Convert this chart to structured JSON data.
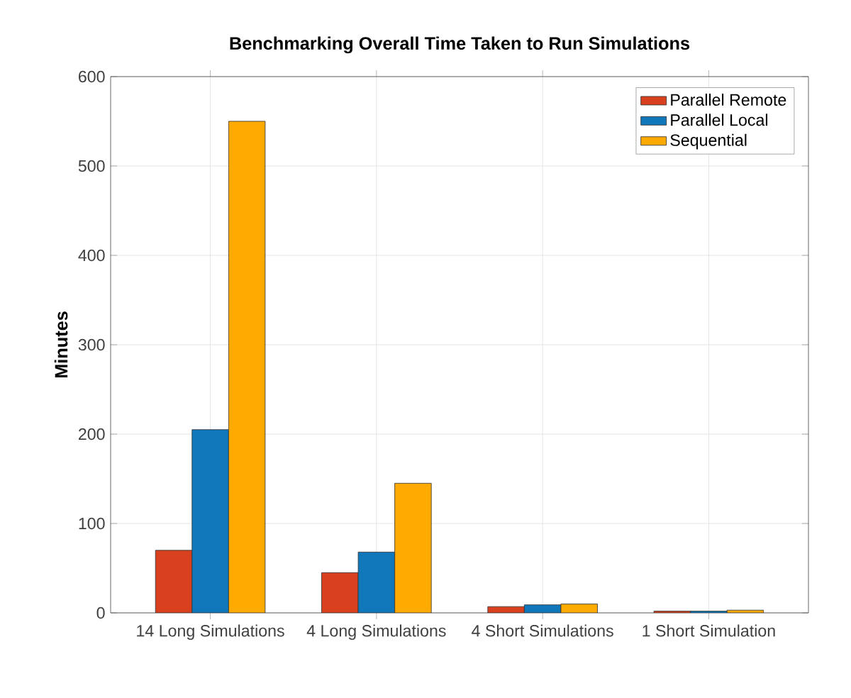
{
  "chart_data": {
    "type": "bar",
    "title": "Benchmarking Overall Time Taken to Run Simulations",
    "ylabel": "Minutes",
    "categories": [
      "14 Long Simulations",
      "4 Long Simulations",
      "4 Short Simulations",
      "1 Short Simulation"
    ],
    "series": [
      {
        "name": "Parallel Remote",
        "color": "#d9411e",
        "values": [
          70,
          45,
          7,
          2
        ]
      },
      {
        "name": "Parallel Local",
        "color": "#1177bb",
        "values": [
          205,
          68,
          9,
          2
        ]
      },
      {
        "name": "Sequential",
        "color": "#ffaa00",
        "values": [
          550,
          145,
          10,
          3
        ]
      }
    ],
    "ylim": [
      0,
      600
    ],
    "yticks": [
      0,
      100,
      200,
      300,
      400,
      500,
      600
    ],
    "grid": true,
    "legend": "top right"
  }
}
